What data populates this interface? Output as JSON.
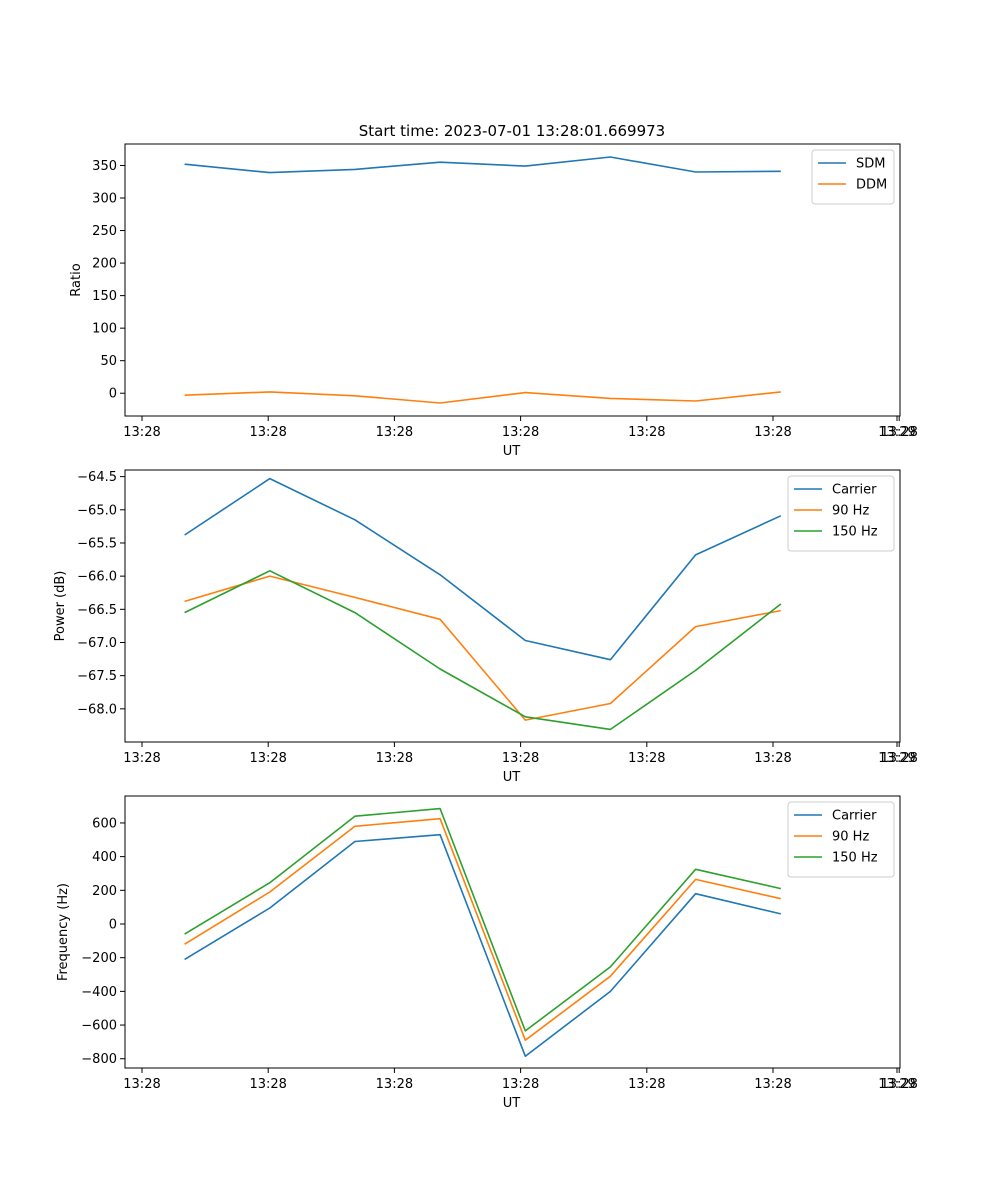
{
  "figure": {
    "title": "Start time: 2023-07-01 13:28:01.669973"
  },
  "colors": {
    "blue": "#1f77b4",
    "orange": "#ff7f0e",
    "green": "#2ca02c"
  },
  "chart_data": [
    {
      "type": "line",
      "title": "Start time: 2023-07-01 13:28:01.669973",
      "xlabel": "UT",
      "ylabel": "Ratio",
      "x_tick_labels": [
        "13:28",
        "13:28",
        "13:28",
        "13:28",
        "13:28",
        "13:28",
        "13:28"
      ],
      "x_tick_right_label": "13:29",
      "x": [
        1,
        2,
        3,
        4,
        5,
        6,
        7,
        8
      ],
      "xlim": [
        0.3,
        9.4
      ],
      "ylim": [
        -35,
        383
      ],
      "yticks": [
        0,
        50,
        100,
        150,
        200,
        250,
        300,
        350
      ],
      "legend_position": "upper right",
      "series": [
        {
          "name": "SDM",
          "color": "#1f77b4",
          "values": [
            352,
            339,
            344,
            355,
            349,
            363,
            340,
            341
          ]
        },
        {
          "name": "DDM",
          "color": "#ff7f0e",
          "values": [
            -3,
            2,
            -4,
            -15,
            1,
            -8,
            -12,
            2
          ]
        }
      ]
    },
    {
      "type": "line",
      "xlabel": "UT",
      "ylabel": "Power (dB)",
      "x_tick_labels": [
        "13:28",
        "13:28",
        "13:28",
        "13:28",
        "13:28",
        "13:28",
        "13:28"
      ],
      "x_tick_right_label": "13:29",
      "x": [
        1,
        2,
        3,
        4,
        5,
        6,
        7,
        8
      ],
      "xlim": [
        0.3,
        9.4
      ],
      "ylim": [
        -68.5,
        -64.4
      ],
      "yticks": [
        -68.0,
        -67.5,
        -67.0,
        -66.5,
        -66.0,
        -65.5,
        -65.0,
        -64.5
      ],
      "legend_position": "upper right",
      "series": [
        {
          "name": "Carrier",
          "color": "#1f77b4",
          "values": [
            -65.38,
            -64.53,
            -65.15,
            -65.98,
            -66.97,
            -67.26,
            -65.68,
            -65.09
          ]
        },
        {
          "name": "90 Hz",
          "color": "#ff7f0e",
          "values": [
            -66.38,
            -66.0,
            -66.32,
            -66.65,
            -68.17,
            -67.92,
            -66.76,
            -66.52
          ]
        },
        {
          "name": "150 Hz",
          "color": "#2ca02c",
          "values": [
            -66.55,
            -65.92,
            -66.55,
            -67.4,
            -68.12,
            -68.31,
            -67.42,
            -66.42
          ]
        }
      ]
    },
    {
      "type": "line",
      "xlabel": "UT",
      "ylabel": "Frequency (Hz)",
      "x_tick_labels": [
        "13:28",
        "13:28",
        "13:28",
        "13:28",
        "13:28",
        "13:28",
        "13:28"
      ],
      "x_tick_right_label": "13:29",
      "x": [
        1,
        2,
        3,
        4,
        5,
        6,
        7,
        8
      ],
      "xlim": [
        0.3,
        9.4
      ],
      "ylim": [
        -855,
        760
      ],
      "yticks": [
        -800,
        -600,
        -400,
        -200,
        0,
        200,
        400,
        600
      ],
      "legend_position": "upper right",
      "series": [
        {
          "name": "Carrier",
          "color": "#1f77b4",
          "values": [
            -210,
            95,
            490,
            530,
            -785,
            -400,
            180,
            60
          ]
        },
        {
          "name": "90 Hz",
          "color": "#ff7f0e",
          "values": [
            -120,
            190,
            580,
            625,
            -690,
            -310,
            265,
            150
          ]
        },
        {
          "name": "150 Hz",
          "color": "#2ca02c",
          "values": [
            -60,
            245,
            640,
            685,
            -635,
            -255,
            325,
            210
          ]
        }
      ]
    }
  ]
}
